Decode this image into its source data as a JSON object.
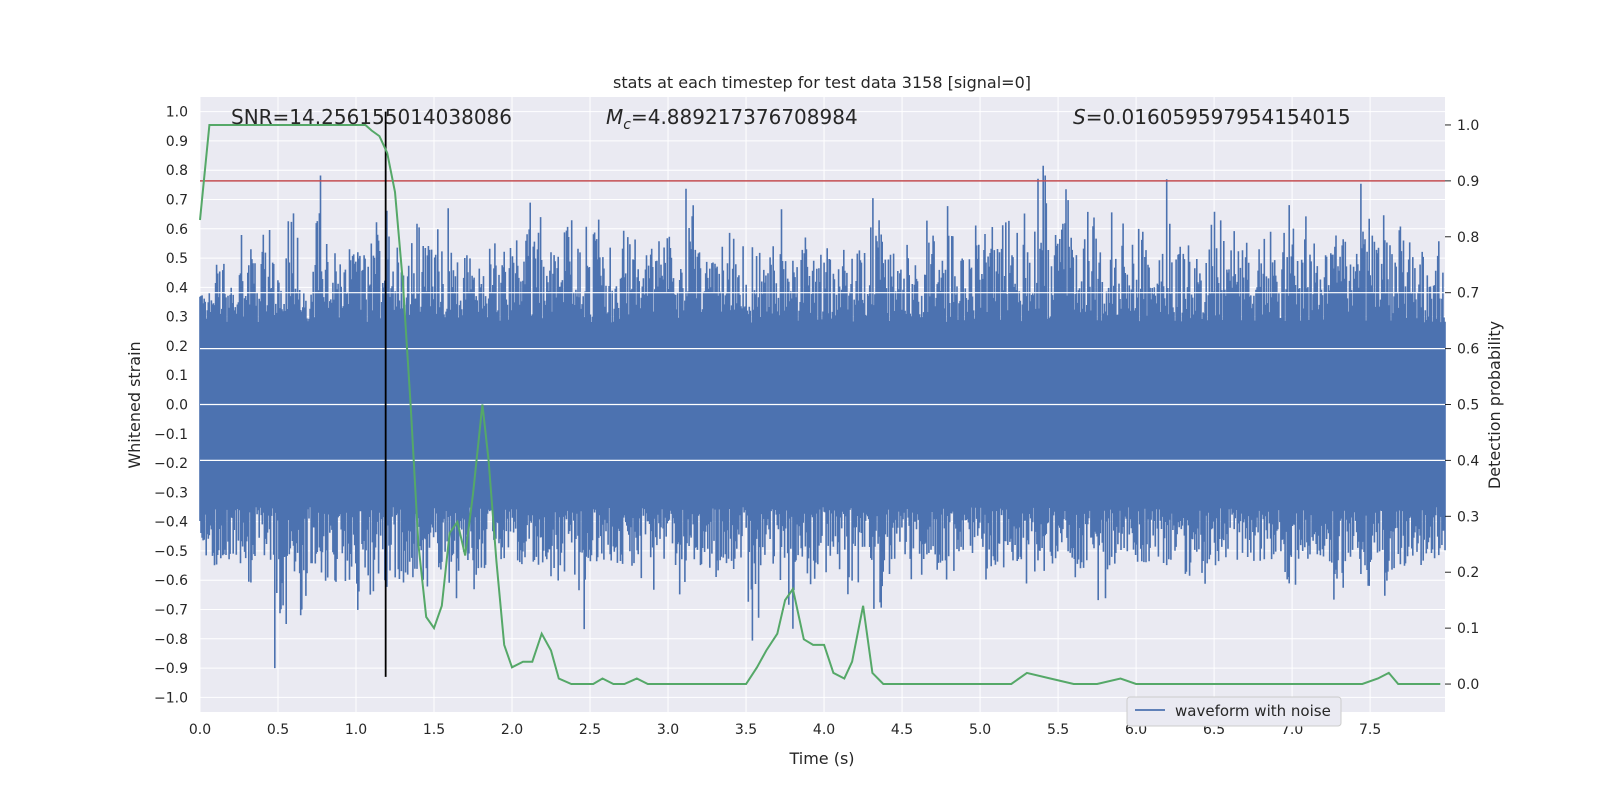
{
  "chart_data": {
    "type": "line",
    "title": "stats at each timestep for test data 3158 [signal=0]",
    "xlabel": "Time (s)",
    "ylabel": "Whitened strain",
    "ylabel_right": "Detection probability",
    "xlim": [
      0.0,
      7.98
    ],
    "ylim": [
      -1.05,
      1.05
    ],
    "ylim_right": [
      -0.05,
      1.05
    ],
    "x_ticks": [
      0.0,
      0.5,
      1.0,
      1.5,
      2.0,
      2.5,
      3.0,
      3.5,
      4.0,
      4.5,
      5.0,
      5.5,
      6.0,
      6.5,
      7.0,
      7.5
    ],
    "x_tick_labels": [
      "0.0",
      "0.5",
      "1.0",
      "1.5",
      "2.0",
      "2.5",
      "3.0",
      "3.5",
      "4.0",
      "4.5",
      "5.0",
      "5.5",
      "6.0",
      "6.5",
      "7.0",
      "7.5"
    ],
    "y_ticks": [
      -1.0,
      -0.9,
      -0.8,
      -0.7,
      -0.6,
      -0.5,
      -0.4,
      -0.3,
      -0.2,
      -0.1,
      0.0,
      0.1,
      0.2,
      0.3,
      0.4,
      0.5,
      0.6,
      0.7,
      0.8,
      0.9,
      1.0
    ],
    "y_tick_labels": [
      "−1.0",
      "−0.9",
      "−0.8",
      "−0.7",
      "−0.6",
      "−0.5",
      "−0.4",
      "−0.3",
      "−0.2",
      "−0.1",
      "0.0",
      "0.1",
      "0.2",
      "0.3",
      "0.4",
      "0.5",
      "0.6",
      "0.7",
      "0.8",
      "0.9",
      "1.0"
    ],
    "y_right_ticks": [
      0.0,
      0.1,
      0.2,
      0.3,
      0.4,
      0.5,
      0.6,
      0.7,
      0.8,
      0.9,
      1.0
    ],
    "y_right_tick_labels": [
      "0.0",
      "0.1",
      "0.2",
      "0.3",
      "0.4",
      "0.5",
      "0.6",
      "0.7",
      "0.8",
      "0.9",
      "1.0"
    ],
    "grid": true,
    "legend_position": "bottom-right",
    "annotations": {
      "snr_text": "SNR=14.256155014038086",
      "mc_prefix": "M",
      "mc_subscript": "c",
      "mc_value": "=4.889217376708984",
      "s_prefix": "S",
      "s_value": "=0.016059597954154015"
    },
    "threshold_line": {
      "y_right": 0.9,
      "color": "#c44e52"
    },
    "marker_time": 1.19,
    "waveform": {
      "name": "waveform with noise",
      "color": "#4c72b0",
      "n_samples": 1200,
      "envelope_pos": [
        0.43,
        0.53,
        0.45,
        0.6,
        0.62,
        0.78,
        0.5,
        0.8,
        0.45,
        0.79,
        0.6,
        0.62,
        0.7,
        0.66,
        0.75,
        0.8,
        0.5,
        0.91,
        0.62,
        0.8,
        0.6,
        0.62,
        0.5,
        0.7,
        0.72,
        0.6,
        0.7,
        0.76,
        0.62,
        0.75,
        0.62,
        0.72,
        0.85,
        0.6,
        0.7,
        0.55,
        0.65,
        0.7,
        0.66,
        0.75,
        0.62,
        0.64,
        0.7,
        0.55,
        0.66,
        0.6,
        0.72,
        0.62,
        0.68,
        0.6,
        0.7,
        0.55,
        0.65,
        0.62,
        0.75,
        0.64,
        0.6,
        0.55,
        0.67,
        0.6,
        0.7,
        0.58,
        0.66,
        0.62,
        0.75,
        0.6,
        0.66,
        1.0,
        0.65,
        0.8,
        0.62,
        0.8,
        0.62,
        0.66,
        0.68,
        0.72,
        0.6,
        0.78,
        0.64,
        0.7,
        0.58,
        0.89,
        0.62,
        0.7,
        0.66,
        0.74,
        0.6,
        0.8,
        0.72,
        0.68,
        0.6,
        0.7,
        0.62,
        0.76,
        0.7,
        0.66,
        0.72,
        0.7,
        0.62,
        0.68
      ],
      "envelope_neg": [
        -0.6,
        -0.66,
        -0.6,
        -0.63,
        -0.62,
        -0.6,
        -0.95,
        -0.65,
        -0.78,
        -0.65,
        -0.72,
        -0.66,
        -0.78,
        -0.8,
        -0.6,
        -0.68,
        -0.7,
        -0.7,
        -0.72,
        -0.65,
        -0.7,
        -0.6,
        -0.75,
        -0.62,
        -0.6,
        -0.62,
        -0.6,
        -0.66,
        -0.68,
        -0.6,
        -0.88,
        -0.6,
        -0.6,
        -0.62,
        -0.6,
        -0.7,
        -0.64,
        -0.6,
        -0.7,
        -0.6,
        -0.62,
        -0.7,
        -0.66,
        -0.6,
        -0.86,
        -0.62,
        -0.7,
        -0.81,
        -0.6,
        -0.62,
        -0.6,
        -0.66,
        -0.78,
        -0.6,
        -0.85,
        -0.64,
        -0.6,
        -0.62,
        -0.6,
        -0.62,
        -0.58,
        -0.6,
        -0.62,
        -0.64,
        -0.6,
        -0.6,
        -0.8,
        -0.66,
        -0.62,
        -0.6,
        -0.68,
        -0.6,
        -0.81,
        -0.66,
        -0.6,
        -0.62,
        -0.6,
        -0.64,
        -0.6,
        -0.75,
        -0.66,
        -0.6,
        -0.62,
        -0.6,
        -0.62,
        -0.6,
        -0.6,
        -0.74,
        -0.6,
        -0.62,
        -0.64,
        -0.78,
        -0.6,
        -0.72,
        -0.6,
        -0.7,
        -0.68,
        -0.6,
        -0.62,
        -0.58
      ]
    },
    "probability": {
      "color": "#55a868",
      "x": [
        0.0,
        0.06,
        0.12,
        0.2,
        0.3,
        0.4,
        0.5,
        0.6,
        0.7,
        0.8,
        0.9,
        1.0,
        1.06,
        1.1,
        1.15,
        1.2,
        1.25,
        1.3,
        1.35,
        1.4,
        1.45,
        1.5,
        1.55,
        1.6,
        1.65,
        1.7,
        1.75,
        1.81,
        1.85,
        1.9,
        1.95,
        2.0,
        2.07,
        2.13,
        2.19,
        2.25,
        2.3,
        2.38,
        2.45,
        2.52,
        2.58,
        2.65,
        2.72,
        2.8,
        2.87,
        2.95,
        3.05,
        3.2,
        3.4,
        3.5,
        3.57,
        3.63,
        3.7,
        3.75,
        3.8,
        3.87,
        3.93,
        4.0,
        4.06,
        4.13,
        4.18,
        4.25,
        4.31,
        4.38,
        4.5,
        4.7,
        4.9,
        5.1,
        5.2,
        5.3,
        5.45,
        5.6,
        5.75,
        5.9,
        6.0,
        6.2,
        6.5,
        6.8,
        7.0,
        7.1,
        7.2,
        7.35,
        7.45,
        7.55,
        7.62,
        7.68,
        7.75,
        7.85,
        7.95
      ],
      "y": [
        0.83,
        1.0,
        1.0,
        1.0,
        1.0,
        1.0,
        1.0,
        1.0,
        1.0,
        1.0,
        1.0,
        1.0,
        1.0,
        0.99,
        0.98,
        0.95,
        0.88,
        0.72,
        0.5,
        0.25,
        0.12,
        0.1,
        0.14,
        0.27,
        0.29,
        0.23,
        0.34,
        0.5,
        0.4,
        0.22,
        0.07,
        0.03,
        0.04,
        0.04,
        0.09,
        0.06,
        0.01,
        0.0,
        0.0,
        0.0,
        0.01,
        0.0,
        0.0,
        0.01,
        0.0,
        0.0,
        0.0,
        0.0,
        0.0,
        0.0,
        0.03,
        0.06,
        0.09,
        0.15,
        0.17,
        0.08,
        0.07,
        0.07,
        0.02,
        0.01,
        0.04,
        0.14,
        0.02,
        0.0,
        0.0,
        0.0,
        0.0,
        0.0,
        0.0,
        0.02,
        0.01,
        0.0,
        0.0,
        0.01,
        0.0,
        0.0,
        0.0,
        0.0,
        0.0,
        0.0,
        0.0,
        0.0,
        0.0,
        0.01,
        0.02,
        0.0,
        0.0,
        0.0,
        0.0
      ]
    }
  }
}
